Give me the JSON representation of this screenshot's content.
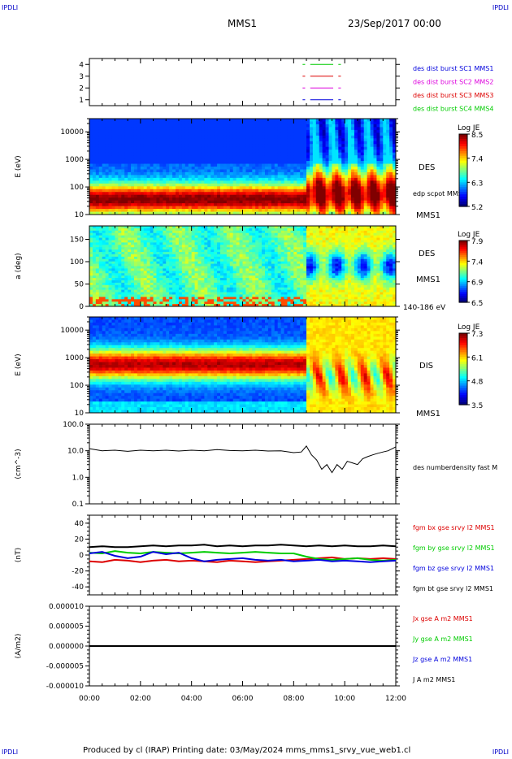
{
  "corner_label": "IPDLI",
  "header": {
    "spacecraft": "MMS1",
    "datetime": "23/Sep/2017 00:00"
  },
  "footer": "Produced by cl (IRAP)   Printing date: 03/May/2024   mms_mms1_srvy_vue_web1.cl",
  "chart_data": [
    {
      "id": "burst",
      "type": "line",
      "yticks": [
        "4",
        "3",
        "2",
        "1"
      ],
      "ylim": [
        0.5,
        4.5
      ],
      "legend": [
        {
          "label": "des dist burst SC1 MMS1",
          "color": "#0000dd"
        },
        {
          "label": "des dist burst SC2 MMS2",
          "color": "#dd00dd"
        },
        {
          "label": "des dist burst SC3 MMS3",
          "color": "#dd0000"
        },
        {
          "label": "des dist burst SC4 MMS4",
          "color": "#00cc00"
        }
      ],
      "series": [
        {
          "level": 4,
          "color": "#00cc00",
          "segments": [
            [
              8.35,
              8.45
            ],
            [
              8.65,
              9.55
            ],
            [
              9.75,
              9.85
            ]
          ]
        },
        {
          "level": 3,
          "color": "#dd0000",
          "segments": [
            [
              8.35,
              8.45
            ],
            [
              8.65,
              9.55
            ],
            [
              9.75,
              9.85
            ]
          ]
        },
        {
          "level": 2,
          "color": "#dd00dd",
          "segments": [
            [
              8.35,
              8.45
            ],
            [
              8.65,
              9.55
            ],
            [
              9.75,
              9.85
            ]
          ]
        },
        {
          "level": 1,
          "color": "#0000dd",
          "segments": [
            [
              8.35,
              8.45
            ],
            [
              8.65,
              9.55
            ],
            [
              9.75,
              9.85
            ]
          ]
        }
      ]
    },
    {
      "id": "des_energy",
      "type": "heatmap",
      "ylabel": "E (eV)",
      "ylog": true,
      "ylim": [
        10,
        30000
      ],
      "yticks": [
        "10000",
        "1000",
        "100",
        "10"
      ],
      "labels": [
        "DES",
        "edp scpot MMS1",
        "MMS1"
      ],
      "colorbar": {
        "title": "Log JE",
        "ticks": [
          "8.5",
          "7.4",
          "6.3",
          "5.2"
        ]
      },
      "spectrum": {
        "peak_log_e_before": 1.55,
        "peak_log_e_after": 1.75,
        "transition_hour": 8.5
      }
    },
    {
      "id": "des_pitch",
      "type": "heatmap",
      "ylabel": "a (deg)",
      "ylim": [
        0,
        180
      ],
      "yticks": [
        "150",
        "100",
        "50",
        "0"
      ],
      "labels": [
        "DES",
        "MMS1",
        "140-186 eV"
      ],
      "colorbar": {
        "title": "Log JE",
        "ticks": [
          "7.9",
          "7.4",
          "6.9",
          "6.5"
        ]
      }
    },
    {
      "id": "dis_energy",
      "type": "heatmap",
      "ylabel": "E (eV)",
      "ylog": true,
      "ylim": [
        10,
        30000
      ],
      "yticks": [
        "10000",
        "1000",
        "100",
        "10"
      ],
      "labels": [
        "DIS",
        "MMS1"
      ],
      "colorbar": {
        "title": "Log JE",
        "ticks": [
          "7.3",
          "6.1",
          "4.8",
          "3.5"
        ]
      },
      "spectrum": {
        "peak_log_e_before": 2.75,
        "transition_hour": 8.5
      }
    },
    {
      "id": "density",
      "type": "line",
      "ylabel": "(cm^-3)",
      "ylog": true,
      "ylim": [
        0.1,
        100
      ],
      "yticks": [
        "100.0",
        "10.0",
        "1.0",
        "0.1"
      ],
      "legend": [
        {
          "label": "des numberdensity fast M",
          "color": "#000000"
        }
      ],
      "x": [
        0,
        0.5,
        1,
        1.5,
        2,
        2.5,
        3,
        3.5,
        4,
        4.5,
        5,
        5.5,
        6,
        6.5,
        7,
        7.5,
        8,
        8.3,
        8.5,
        8.7,
        8.9,
        9.1,
        9.3,
        9.5,
        9.7,
        9.9,
        10.1,
        10.3,
        10.5,
        10.7,
        10.9,
        11.1,
        11.3,
        11.5,
        11.7,
        12
      ],
      "values": [
        12,
        10,
        10.5,
        9.5,
        10.5,
        10,
        10.5,
        9.8,
        10.5,
        10,
        11,
        10.2,
        10,
        10.5,
        9.8,
        10,
        8.5,
        9,
        15,
        7,
        4.5,
        2,
        3,
        1.5,
        3,
        2,
        4,
        3.5,
        3,
        5,
        6,
        7,
        8,
        9,
        10,
        14
      ]
    },
    {
      "id": "magnetic_field",
      "type": "line",
      "ylabel": "(nT)",
      "ylim": [
        -50,
        50
      ],
      "yticks": [
        "40",
        "20",
        "0",
        "-20",
        "-40"
      ],
      "x": [
        0,
        0.5,
        1,
        1.5,
        2,
        2.5,
        3,
        3.5,
        4,
        4.5,
        5,
        5.5,
        6,
        6.5,
        7,
        7.5,
        8,
        8.5,
        9,
        9.5,
        10,
        10.5,
        11,
        11.5,
        12
      ],
      "series": [
        {
          "name": "fgm bx gse srvy l2 MMS1",
          "color": "#dd0000",
          "values": [
            -8,
            -9,
            -6,
            -7,
            -9,
            -7,
            -6,
            -8,
            -7,
            -8,
            -9,
            -7,
            -8,
            -9,
            -8,
            -7,
            -6,
            -5,
            -4,
            -3,
            -5,
            -4,
            -5,
            -4,
            -5
          ]
        },
        {
          "name": "fgm by gse srvy l2 MMS1",
          "color": "#00cc00",
          "values": [
            3,
            2,
            5,
            3,
            2,
            4,
            3,
            2,
            3,
            4,
            3,
            2,
            3,
            4,
            3,
            2,
            2,
            -2,
            -5,
            -6,
            -5,
            -4,
            -6,
            -7,
            -6
          ]
        },
        {
          "name": "fgm bz gse srvy l2 MMS1",
          "color": "#0000dd",
          "values": [
            2,
            4,
            -1,
            -4,
            -2,
            4,
            1,
            3,
            -4,
            -8,
            -6,
            -5,
            -4,
            -6,
            -7,
            -6,
            -8,
            -7,
            -6,
            -8,
            -7,
            -8,
            -9,
            -8,
            -7
          ]
        },
        {
          "name": "fgm bt gse srvy l2 MMS1",
          "color": "#000000",
          "values": [
            10,
            11,
            10,
            10,
            11,
            12,
            11,
            12,
            12,
            13,
            11,
            12,
            11,
            12,
            12,
            13,
            12,
            11,
            12,
            11,
            12,
            11,
            11,
            12,
            11
          ]
        }
      ]
    },
    {
      "id": "current",
      "type": "line",
      "ylabel": "(A/m2)",
      "ylim": [
        -1e-05,
        1e-05
      ],
      "yticks": [
        "0.000010",
        "0.000005",
        "0.000000",
        "-0.000005",
        "-0.000010"
      ],
      "xticks": [
        "00:00",
        "02:00",
        "04:00",
        "06:00",
        "08:00",
        "10:00",
        "12:00"
      ],
      "xlim_hours": [
        0,
        12
      ],
      "series": [
        {
          "name": "Jx gse A m2 MMS1",
          "color": "#dd0000"
        },
        {
          "name": "Jy gse A m2 MMS1",
          "color": "#00cc00"
        },
        {
          "name": "Jz gse A m2 MMS1",
          "color": "#0000dd"
        },
        {
          "name": "J A m2 MMS1",
          "color": "#000000",
          "values": [
            0,
            0
          ]
        }
      ]
    }
  ]
}
